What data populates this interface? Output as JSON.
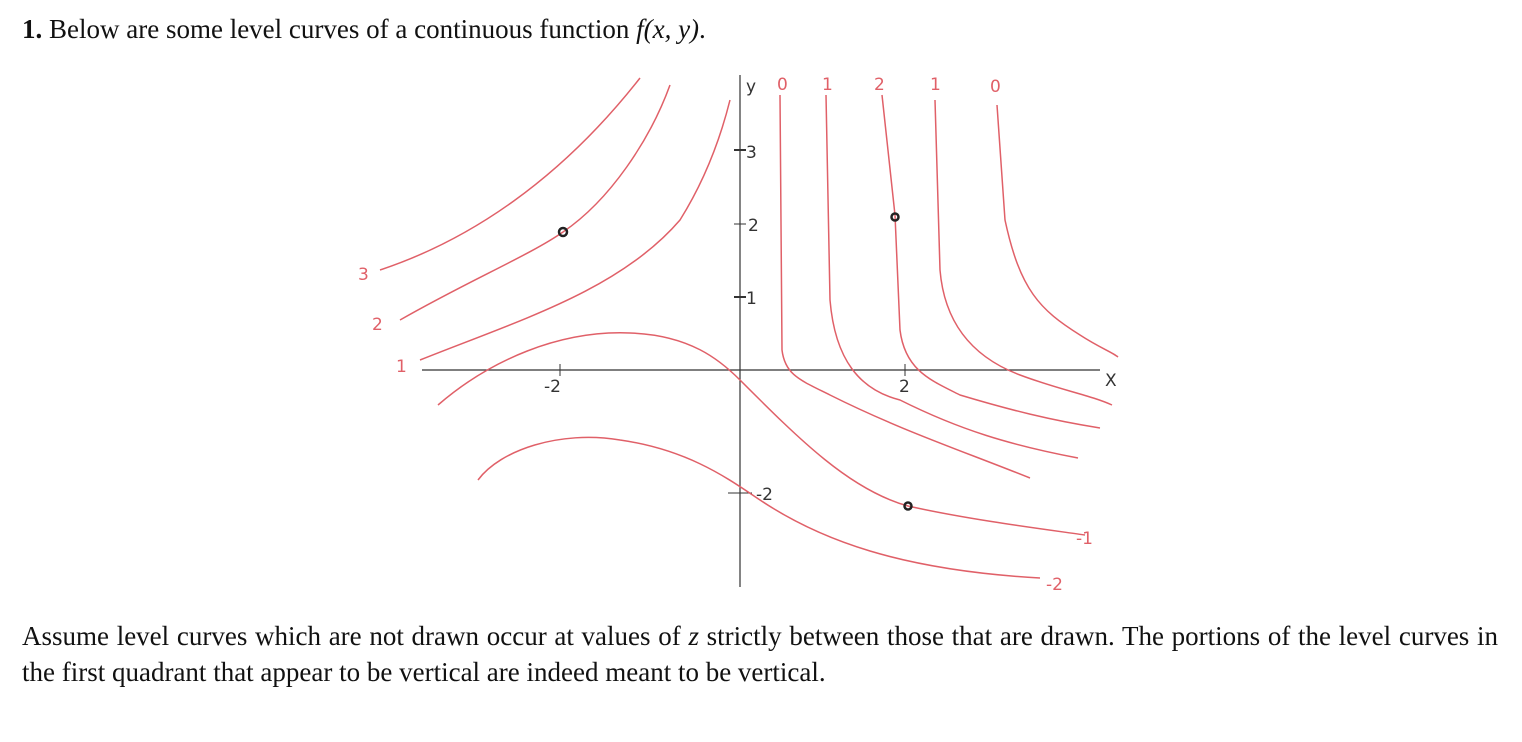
{
  "problem": {
    "number": "1.",
    "intro": "Below are some level curves of a continuous function",
    "function": "f(x, y)",
    "intro_end": ".",
    "figure": {
      "x_axis_label": "X",
      "y_axis_label": "y",
      "x_ticks": [
        "-2",
        "2"
      ],
      "y_ticks": [
        "3",
        "2",
        "1",
        "-2"
      ],
      "top_levels": [
        "0",
        "1",
        "2",
        "1",
        "0"
      ],
      "left_levels": [
        "3",
        "2",
        "1"
      ],
      "right_levels": [
        "-1",
        "-2"
      ]
    },
    "note_before": "Assume level curves which are not drawn occur at values of",
    "note_variable": "z",
    "note_after": "strictly between those that are drawn. The portions of the level curves in the first quadrant that appear to be vertical are indeed meant to be vertical."
  }
}
